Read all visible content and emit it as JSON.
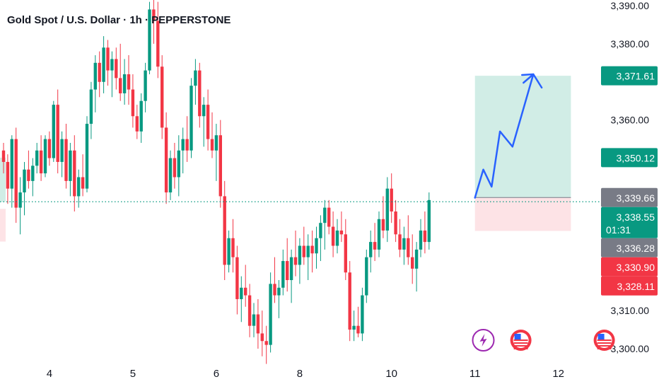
{
  "header": {
    "title": "Gold Spot / U.S. Dollar · 1h · PEPPERSTONE"
  },
  "chart_data": {
    "type": "candlestick",
    "title": "Gold Spot / U.S. Dollar · 1h · PEPPERSTONE",
    "ylim": [
      3296.5,
      3391
    ],
    "y_ticks": [
      {
        "value": 3390,
        "label": "3,390.00"
      },
      {
        "value": 3380,
        "label": "3,380.00"
      },
      {
        "value": 3360,
        "label": "3,360.00"
      },
      {
        "value": 3310,
        "label": "3,310.00"
      },
      {
        "value": 3300,
        "label": "3,300.00"
      }
    ],
    "x_ticks": [
      {
        "label": "4",
        "index": 11
      },
      {
        "label": "5",
        "index": 31
      },
      {
        "label": "6",
        "index": 51
      },
      {
        "label": "8",
        "index": 71
      },
      {
        "label": "10",
        "index": 93
      },
      {
        "label": "11",
        "index": 113
      },
      {
        "label": "12",
        "index": 133
      }
    ],
    "candles": [
      [
        3352,
        3354,
        3346,
        3349
      ],
      [
        3349,
        3351,
        3338,
        3342
      ],
      [
        3342,
        3356,
        3337,
        3355
      ],
      [
        3355,
        3358,
        3333,
        3337
      ],
      [
        3337,
        3345,
        3330,
        3341
      ],
      [
        3341,
        3349,
        3335,
        3347
      ],
      [
        3347,
        3352,
        3342,
        3344
      ],
      [
        3344,
        3350,
        3340,
        3348
      ],
      [
        3348,
        3354,
        3346,
        3352
      ],
      [
        3352,
        3356,
        3344,
        3346
      ],
      [
        3346,
        3356,
        3345,
        3355
      ],
      [
        3355,
        3357,
        3348,
        3350
      ],
      [
        3350,
        3365,
        3349,
        3364
      ],
      [
        3364,
        3368,
        3346,
        3349
      ],
      [
        3349,
        3357,
        3345,
        3355
      ],
      [
        3355,
        3359,
        3342,
        3344
      ],
      [
        3344,
        3354,
        3340,
        3352
      ],
      [
        3352,
        3356,
        3336,
        3340
      ],
      [
        3340,
        3347,
        3337,
        3345
      ],
      [
        3345,
        3351,
        3340,
        3342
      ],
      [
        3342,
        3361,
        3341,
        3359
      ],
      [
        3359,
        3370,
        3355,
        3368
      ],
      [
        3368,
        3377,
        3362,
        3375
      ],
      [
        3375,
        3378,
        3366,
        3370
      ],
      [
        3370,
        3382,
        3367,
        3379
      ],
      [
        3379,
        3381,
        3369,
        3373
      ],
      [
        3373,
        3378,
        3366,
        3376
      ],
      [
        3376,
        3379,
        3368,
        3371
      ],
      [
        3371,
        3380,
        3365,
        3367
      ],
      [
        3367,
        3376,
        3364,
        3372
      ],
      [
        3372,
        3377,
        3364,
        3368
      ],
      [
        3368,
        3372,
        3358,
        3361
      ],
      [
        3361,
        3364,
        3355,
        3357
      ],
      [
        3357,
        3367,
        3354,
        3365
      ],
      [
        3365,
        3375,
        3362,
        3373
      ],
      [
        3373,
        3391,
        3372,
        3389
      ],
      [
        3389,
        3393,
        3380,
        3386
      ],
      [
        3386,
        3391,
        3371,
        3374
      ],
      [
        3374,
        3377,
        3355,
        3358
      ],
      [
        3358,
        3362,
        3338,
        3341
      ],
      [
        3341,
        3352,
        3339,
        3350
      ],
      [
        3350,
        3354,
        3342,
        3345
      ],
      [
        3345,
        3356,
        3340,
        3352
      ],
      [
        3352,
        3358,
        3346,
        3355
      ],
      [
        3355,
        3361,
        3349,
        3352
      ],
      [
        3352,
        3371,
        3350,
        3369
      ],
      [
        3369,
        3376,
        3364,
        3373
      ],
      [
        3373,
        3375,
        3358,
        3361
      ],
      [
        3361,
        3366,
        3353,
        3364
      ],
      [
        3364,
        3368,
        3352,
        3355
      ],
      [
        3355,
        3362,
        3350,
        3352
      ],
      [
        3352,
        3359,
        3344,
        3356
      ],
      [
        3356,
        3360,
        3337,
        3340
      ],
      [
        3340,
        3344,
        3318,
        3322
      ],
      [
        3322,
        3331,
        3320,
        3329
      ],
      [
        3329,
        3334,
        3320,
        3324
      ],
      [
        3324,
        3327,
        3309,
        3313
      ],
      [
        3313,
        3319,
        3307,
        3316
      ],
      [
        3316,
        3322,
        3311,
        3314
      ],
      [
        3314,
        3317,
        3303,
        3306
      ],
      [
        3306,
        3312,
        3303,
        3309
      ],
      [
        3309,
        3313,
        3300,
        3304
      ],
      [
        3304,
        3310,
        3298,
        3302
      ],
      [
        3302,
        3306,
        3296,
        3301
      ],
      [
        3301,
        3320,
        3299,
        3317
      ],
      [
        3317,
        3324,
        3312,
        3314
      ],
      [
        3314,
        3318,
        3308,
        3316
      ],
      [
        3316,
        3326,
        3314,
        3323
      ],
      [
        3323,
        3329,
        3315,
        3318
      ],
      [
        3318,
        3326,
        3312,
        3324
      ],
      [
        3324,
        3331,
        3319,
        3322
      ],
      [
        3322,
        3329,
        3317,
        3327
      ],
      [
        3327,
        3332,
        3322,
        3324
      ],
      [
        3324,
        3330,
        3318,
        3327
      ],
      [
        3327,
        3331,
        3320,
        3325
      ],
      [
        3325,
        3332,
        3321,
        3329
      ],
      [
        3329,
        3335,
        3323,
        3333
      ],
      [
        3333,
        3339,
        3326,
        3337
      ],
      [
        3337,
        3339,
        3330,
        3332
      ],
      [
        3332,
        3336,
        3324,
        3327
      ],
      [
        3327,
        3334,
        3325,
        3331
      ],
      [
        3331,
        3336,
        3328,
        3330
      ],
      [
        3330,
        3334,
        3318,
        3320
      ],
      [
        3320,
        3323,
        3302,
        3305
      ],
      [
        3305,
        3310,
        3302,
        3306
      ],
      [
        3306,
        3311,
        3303,
        3304
      ],
      [
        3304,
        3316,
        3302,
        3314
      ],
      [
        3314,
        3326,
        3312,
        3324
      ],
      [
        3324,
        3331,
        3320,
        3328
      ],
      [
        3328,
        3333,
        3323,
        3326
      ],
      [
        3326,
        3336,
        3324,
        3334
      ],
      [
        3334,
        3340,
        3329,
        3331
      ],
      [
        3331,
        3345,
        3328,
        3342
      ],
      [
        3342,
        3346,
        3333,
        3336
      ],
      [
        3336,
        3339,
        3328,
        3330
      ],
      [
        3330,
        3334,
        3324,
        3326
      ],
      [
        3326,
        3332,
        3322,
        3329
      ],
      [
        3329,
        3335,
        3322,
        3324
      ],
      [
        3324,
        3330,
        3317,
        3321
      ],
      [
        3321,
        3328,
        3315,
        3326
      ],
      [
        3326,
        3334,
        3324,
        3331
      ],
      [
        3331,
        3336,
        3325,
        3328
      ],
      [
        3328,
        3341,
        3326,
        3339
      ]
    ],
    "trade_box": {
      "start_index": 113,
      "end_index": 136,
      "entry": 3339.66,
      "target": 3371.61,
      "stop": 3330.9
    },
    "projection": [
      [
        113,
        3339.6
      ],
      [
        115,
        3347
      ],
      [
        117,
        3342.5
      ],
      [
        119,
        3357
      ],
      [
        122,
        3353
      ],
      [
        127,
        3372
      ],
      [
        129,
        3368.5
      ]
    ],
    "current_price_line": 3338.55,
    "price_badges": [
      {
        "label": "3,371.61",
        "value": 3371.61,
        "color": "#089981"
      },
      {
        "label": "3,350.12",
        "value": 3350.12,
        "color": "#089981"
      },
      {
        "label": "3,339.66",
        "value": 3339.66,
        "color": "#787b86"
      },
      {
        "label": "3,338.55",
        "value": 3338.55,
        "sub": "01:31",
        "color": "#089981"
      },
      {
        "label": "3,336.28",
        "value": 3336.28,
        "color": "#787b86"
      },
      {
        "label": "3,330.90",
        "value": 3330.9,
        "color": "#f23645"
      },
      {
        "label": "3,328.11",
        "value": 3328.11,
        "color": "#f23645"
      }
    ],
    "event_icons": [
      {
        "name": "lightning-event-icon",
        "index": 115,
        "color": "#9c27b0"
      },
      {
        "name": "us-flag-event-icon",
        "index": 124
      },
      {
        "name": "us-flag-event-icon",
        "index": 144
      }
    ],
    "left_box": {
      "target": 3350.12,
      "stop": 3328.11
    },
    "colors": {
      "up": "#089981",
      "down": "#f23645",
      "projection": "#2962ff",
      "target_zone": "#d1ede6",
      "stop_zone": "#fde3e6"
    }
  }
}
